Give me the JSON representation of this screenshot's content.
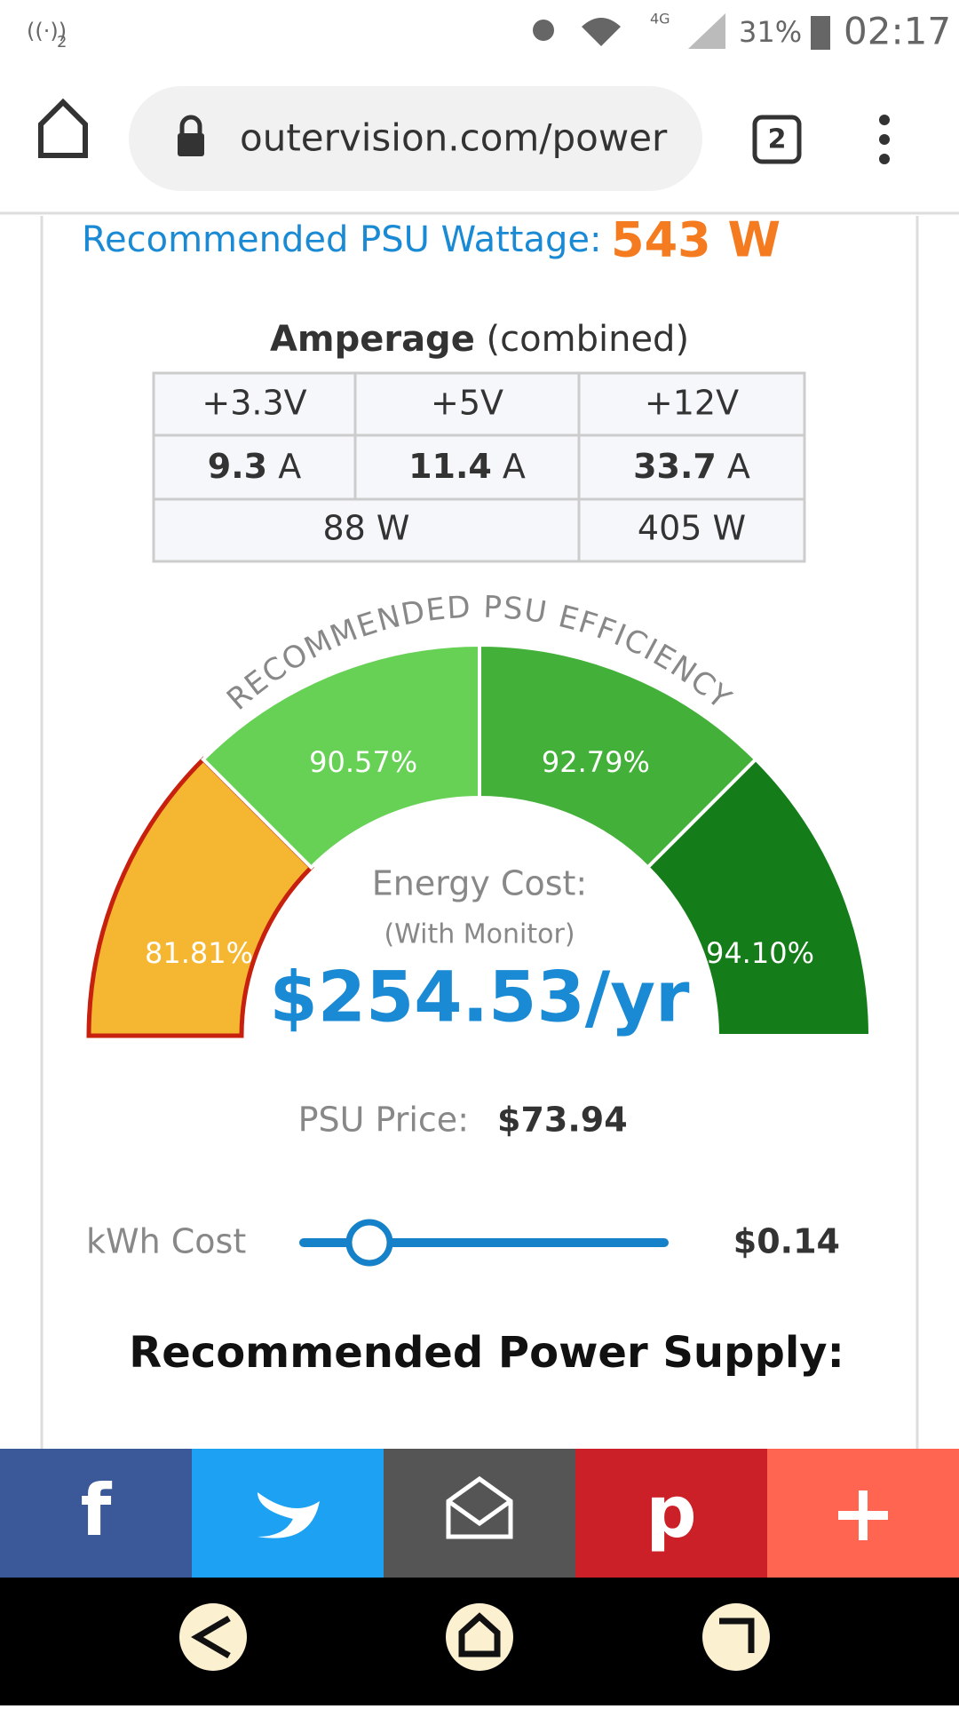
{
  "status": {
    "sim": "2",
    "network": "4G",
    "battery": "31%",
    "time": "02:17"
  },
  "browser": {
    "url": "outervision.com/power",
    "tabs": "2"
  },
  "content": {
    "wattage_label": "Recommended PSU Wattage:",
    "wattage_value": "543 W",
    "amperage": {
      "title": "Amperage",
      "subtitle": "(combined)",
      "header": [
        "+3.3V",
        "+5V",
        "+12V"
      ],
      "amps": [
        {
          "value": "9.3",
          "unit": "A"
        },
        {
          "value": "11.4",
          "unit": "A"
        },
        {
          "value": "33.7",
          "unit": "A"
        }
      ],
      "watts": [
        "88 W",
        "405 W"
      ]
    },
    "efficiency": {
      "title": "RECOMMENDED PSU EFFICIENCY",
      "segments": [
        "81.81%",
        "90.57%",
        "92.79%",
        "94.10%"
      ]
    },
    "energy": {
      "label": "Energy Cost:",
      "sublabel": "(With Monitor)",
      "value": "$254.53/yr"
    },
    "price": {
      "label": "PSU Price:",
      "value": "$73.94"
    },
    "kwh": {
      "label": "kWh Cost",
      "value": "$0.14"
    },
    "recommended": "Recommended Power Supply:"
  }
}
